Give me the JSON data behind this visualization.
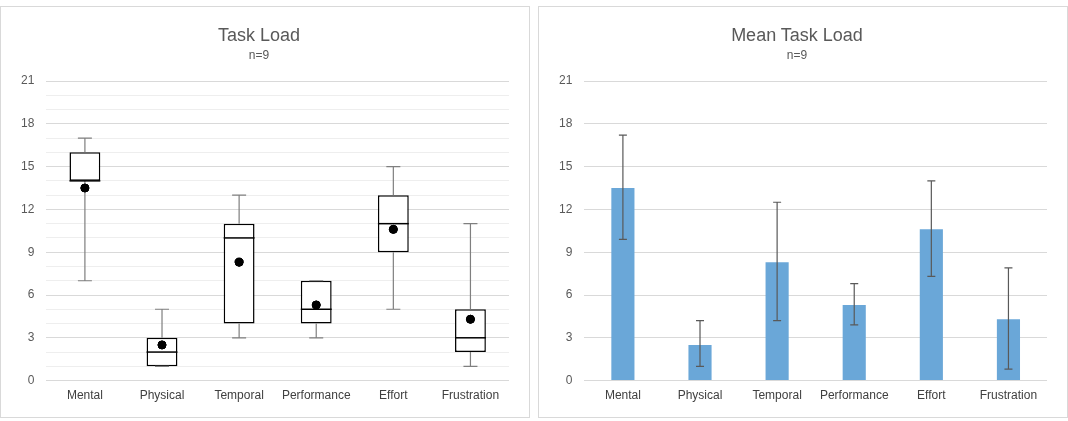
{
  "chart_data": [
    {
      "type": "box",
      "title": "Task Load",
      "subtitle": "n=9",
      "categories": [
        "Mental",
        "Physical",
        "Temporal",
        "Performance",
        "Effort",
        "Frustration"
      ],
      "boxes": [
        {
          "low": 7,
          "q1": 14,
          "median": 14,
          "q3": 16,
          "high": 17,
          "mean": 13.5
        },
        {
          "low": 1,
          "q1": 1,
          "median": 2,
          "q3": 3,
          "high": 5,
          "mean": 2.5
        },
        {
          "low": 3,
          "q1": 4,
          "median": 10,
          "q3": 11,
          "high": 13,
          "mean": 8.3
        },
        {
          "low": 3,
          "q1": 4,
          "median": 5,
          "q3": 7,
          "high": 7,
          "mean": 5.3
        },
        {
          "low": 5,
          "q1": 9,
          "median": 11,
          "q3": 13,
          "high": 15,
          "mean": 10.6
        },
        {
          "low": 1,
          "q1": 2,
          "median": 3,
          "q3": 5,
          "high": 11,
          "mean": 4.3
        }
      ],
      "color": "#000000",
      "ylim": [
        0,
        21
      ],
      "yticks": [
        0,
        {
          "value": 1,
          "label": null
        },
        {
          "value": 2,
          "label": null
        },
        3,
        {
          "value": 4,
          "label": null
        },
        {
          "value": 5,
          "label": null
        },
        6,
        {
          "value": 7,
          "label": null
        },
        {
          "value": 8,
          "label": null
        },
        9,
        {
          "value": 10,
          "label": null
        },
        {
          "value": 11,
          "label": null
        },
        12,
        {
          "value": 13,
          "label": null
        },
        {
          "value": 14,
          "label": null
        },
        15,
        {
          "value": 16,
          "label": null
        },
        {
          "value": 17,
          "label": null
        },
        18,
        {
          "value": 19,
          "label": null
        },
        {
          "value": 20,
          "label": null
        },
        21
      ],
      "grid": "y",
      "legend": false
    },
    {
      "type": "bar",
      "title": "Mean Task Load",
      "subtitle": "n=9",
      "categories": [
        "Mental",
        "Physical",
        "Temporal",
        "Performance",
        "Effort",
        "Frustration"
      ],
      "values": [
        13.5,
        2.5,
        8.3,
        5.3,
        10.6,
        4.3
      ],
      "errors": [
        [
          9.9,
          17.2
        ],
        [
          1.0,
          4.2
        ],
        [
          4.2,
          12.5
        ],
        [
          3.9,
          6.8
        ],
        [
          7.3,
          14.0
        ],
        [
          0.8,
          7.9
        ]
      ],
      "color": "#6aa7d8",
      "ylim": [
        0,
        21
      ],
      "yticks": [
        0,
        3,
        6,
        9,
        12,
        15,
        18,
        21
      ],
      "grid": "y",
      "legend": false
    }
  ]
}
